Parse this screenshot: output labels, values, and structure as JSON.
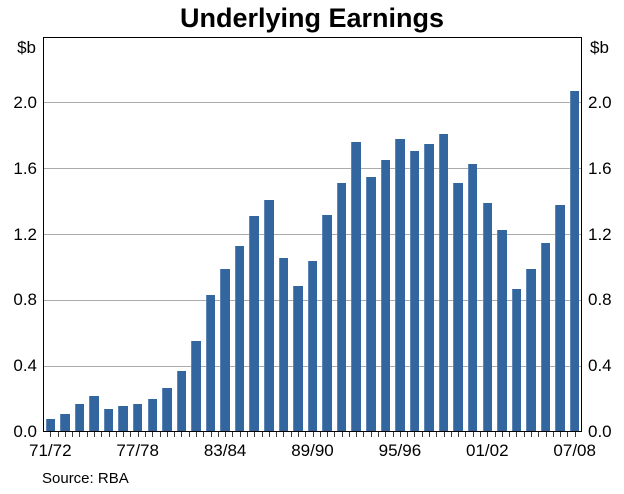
{
  "chart_data": {
    "type": "bar",
    "title": "Underlying Earnings",
    "unit_label": "$b",
    "source": "Source: RBA",
    "categories": [
      "71/72",
      "72/73",
      "73/74",
      "74/75",
      "75/76",
      "76/77",
      "77/78",
      "78/79",
      "79/80",
      "80/81",
      "81/82",
      "82/83",
      "83/84",
      "84/85",
      "85/86",
      "86/87",
      "87/88",
      "88/89",
      "89/90",
      "90/91",
      "91/92",
      "92/93",
      "93/94",
      "94/95",
      "95/96",
      "96/97",
      "97/98",
      "98/99",
      "99/00",
      "00/01",
      "01/02",
      "02/03",
      "03/04",
      "04/05",
      "05/06",
      "06/07",
      "07/08"
    ],
    "values": [
      0.08,
      0.11,
      0.17,
      0.22,
      0.14,
      0.16,
      0.17,
      0.2,
      0.27,
      0.37,
      0.55,
      0.83,
      0.99,
      1.13,
      1.31,
      1.41,
      1.06,
      0.89,
      1.04,
      1.32,
      1.51,
      1.76,
      1.55,
      1.65,
      1.78,
      1.71,
      1.75,
      1.81,
      1.51,
      1.63,
      1.39,
      1.23,
      0.87,
      0.99,
      1.15,
      1.38,
      2.07
    ],
    "x_tick_labels": [
      "71/72",
      "77/78",
      "83/84",
      "89/90",
      "95/96",
      "01/02",
      "07/08"
    ],
    "x_tick_every": 6,
    "y_ticks": [
      0.0,
      0.4,
      0.8,
      1.2,
      1.6,
      2.0
    ],
    "ylim": [
      0,
      2.4
    ],
    "grid": true,
    "legend": "none",
    "bar_color": "#33669e",
    "bar_edge_color": "#5e86b5",
    "grid_color": "#ababab",
    "frame_color": "#000000"
  }
}
